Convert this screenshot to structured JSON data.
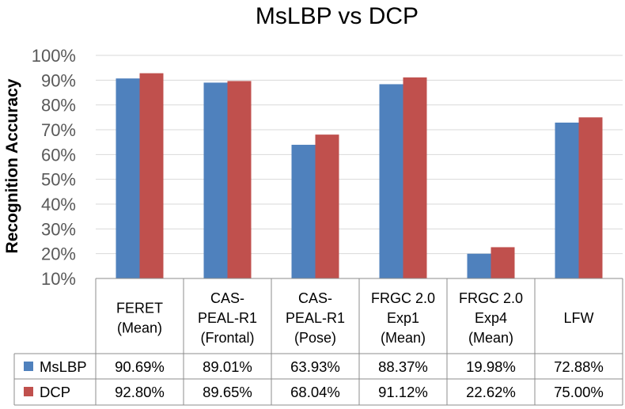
{
  "chart_data": {
    "type": "bar",
    "title": "MsLBP vs DCP",
    "ylabel": "Recognition Accuracy",
    "xlabel": "",
    "ylim": [
      10,
      100
    ],
    "y_ticks": [
      "10%",
      "20%",
      "30%",
      "40%",
      "50%",
      "60%",
      "70%",
      "80%",
      "90%",
      "100%"
    ],
    "grid": true,
    "legend_placement": "data-table-left",
    "categories": [
      [
        "FERET",
        "(Mean)"
      ],
      [
        "CAS-",
        "PEAL-R1",
        "(Frontal)"
      ],
      [
        "CAS-",
        "PEAL-R1",
        "(Pose)"
      ],
      [
        "FRGC 2.0",
        "Exp1",
        "(Mean)"
      ],
      [
        "FRGC 2.0",
        "Exp4",
        "(Mean)"
      ],
      [
        "LFW"
      ]
    ],
    "series": [
      {
        "name": "MsLBP",
        "color": "#4f81bd",
        "values": [
          90.69,
          89.01,
          63.93,
          88.37,
          19.98,
          72.88
        ],
        "labels": [
          "90.69%",
          "89.01%",
          "63.93%",
          "88.37%",
          "19.98%",
          "72.88%"
        ]
      },
      {
        "name": "DCP",
        "color": "#c0504d",
        "values": [
          92.8,
          89.65,
          68.04,
          91.12,
          22.62,
          75.0
        ],
        "labels": [
          "92.80%",
          "89.65%",
          "68.04%",
          "91.12%",
          "22.62%",
          "75.00%"
        ]
      }
    ]
  }
}
